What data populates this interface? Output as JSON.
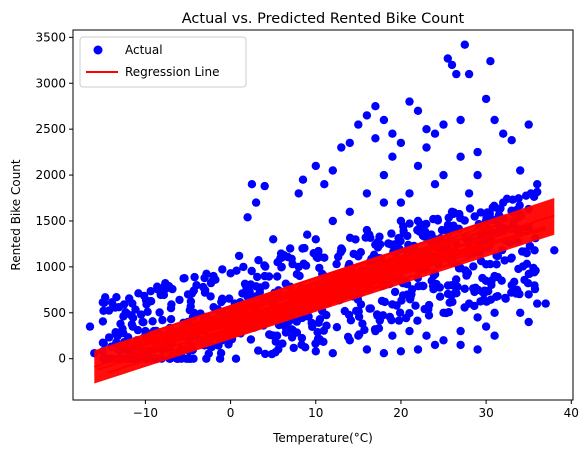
{
  "chart_data": {
    "type": "scatter",
    "title": "Actual vs. Predicted Rented Bike Count",
    "xlabel": "Temperature(°C)",
    "ylabel": "Rented Bike Count",
    "xlim": [
      -18.5,
      40.2
    ],
    "ylim": [
      -450,
      3580
    ],
    "xticks": [
      -10,
      0,
      10,
      20,
      30,
      40
    ],
    "yticks": [
      0,
      500,
      1000,
      1500,
      2000,
      2500,
      3000,
      3500
    ],
    "grid": false,
    "legend_position": "top-left",
    "legend": [
      {
        "label": "Actual",
        "marker": "circle",
        "color": "#0000ff"
      },
      {
        "label": "Regression Line",
        "marker": "line",
        "color": "#ff0000"
      }
    ],
    "series": [
      {
        "name": "Actual",
        "kind": "scatter",
        "color": "#0000ff",
        "points": [
          [
            -16.5,
            350
          ],
          [
            -16,
            60
          ],
          [
            -15,
            80
          ],
          [
            -14,
            130
          ],
          [
            -13,
            90
          ],
          [
            -12.5,
            590
          ],
          [
            -12,
            150
          ],
          [
            -11,
            200
          ],
          [
            -10.5,
            480
          ],
          [
            -10,
            260
          ],
          [
            -9,
            300
          ],
          [
            -8,
            420
          ],
          [
            -7,
            550
          ],
          [
            -6,
            640
          ],
          [
            -5,
            700
          ],
          [
            -4,
            800
          ],
          [
            -3,
            720
          ],
          [
            -2,
            900
          ],
          [
            -1,
            650
          ],
          [
            0,
            930
          ],
          [
            0.5,
            600
          ],
          [
            1,
            1120
          ],
          [
            1.5,
            1000
          ],
          [
            2,
            1540
          ],
          [
            2.5,
            1900
          ],
          [
            3,
            1700
          ],
          [
            4,
            1880
          ],
          [
            5,
            1300
          ],
          [
            6,
            1100
          ],
          [
            7,
            1200
          ],
          [
            8,
            1800
          ],
          [
            8.5,
            1950
          ],
          [
            9,
            1350
          ],
          [
            10,
            2100
          ],
          [
            11,
            1900
          ],
          [
            12,
            2050
          ],
          [
            13,
            2300
          ],
          [
            14,
            2350
          ],
          [
            15,
            2550
          ],
          [
            16,
            2650
          ],
          [
            17,
            2750
          ],
          [
            18,
            2600
          ],
          [
            19,
            2450
          ],
          [
            20,
            2350
          ],
          [
            21,
            2800
          ],
          [
            22,
            2700
          ],
          [
            23,
            2500
          ],
          [
            24,
            2450
          ],
          [
            25,
            2550
          ],
          [
            25.5,
            3270
          ],
          [
            26,
            3200
          ],
          [
            26.5,
            3100
          ],
          [
            27,
            2600
          ],
          [
            27.5,
            3420
          ],
          [
            28,
            3100
          ],
          [
            29,
            2250
          ],
          [
            30,
            2830
          ],
          [
            30.5,
            3240
          ],
          [
            31,
            2600
          ],
          [
            32,
            2450
          ],
          [
            33,
            2380
          ],
          [
            34,
            2050
          ],
          [
            35,
            2550
          ],
          [
            36,
            1900
          ],
          [
            37,
            600
          ],
          [
            38,
            1180
          ],
          [
            35,
            400
          ],
          [
            33,
            800
          ],
          [
            31,
            500
          ],
          [
            29,
            450
          ],
          [
            27,
            300
          ],
          [
            25,
            500
          ],
          [
            24,
            150
          ],
          [
            22,
            100
          ],
          [
            20,
            80
          ],
          [
            18,
            60
          ],
          [
            16,
            100
          ],
          [
            14,
            200
          ],
          [
            12,
            60
          ],
          [
            10,
            80
          ],
          [
            26,
            1600
          ],
          [
            28,
            1800
          ],
          [
            24,
            1900
          ],
          [
            22,
            2100
          ],
          [
            20,
            1500
          ],
          [
            18,
            1700
          ],
          [
            16,
            1400
          ],
          [
            14,
            1600
          ],
          [
            12,
            1500
          ],
          [
            10,
            1300
          ],
          [
            29,
            1200
          ],
          [
            31,
            900
          ],
          [
            33,
            1100
          ],
          [
            35,
            700
          ],
          [
            36,
            600
          ],
          [
            34,
            500
          ],
          [
            30,
            350
          ],
          [
            28,
            600
          ],
          [
            26,
            800
          ],
          [
            23,
            1000
          ],
          [
            21,
            1200
          ],
          [
            19,
            900
          ],
          [
            17,
            1100
          ],
          [
            15,
            800
          ],
          [
            13,
            700
          ],
          [
            11,
            900
          ],
          [
            9,
            700
          ],
          [
            7,
            500
          ],
          [
            5,
            600
          ],
          [
            3,
            400
          ],
          [
            1,
            300
          ],
          [
            -1,
            200
          ],
          [
            -3,
            300
          ],
          [
            -5,
            400
          ],
          [
            -7,
            200
          ],
          [
            -9,
            100
          ],
          [
            6,
            1000
          ],
          [
            4,
            900
          ],
          [
            2,
            800
          ],
          [
            27,
            2200
          ],
          [
            23,
            2300
          ],
          [
            19,
            2200
          ],
          [
            17,
            2400
          ],
          [
            21,
            1800
          ],
          [
            25,
            2000
          ],
          [
            29,
            2000
          ],
          [
            32,
            1700
          ],
          [
            30,
            1500
          ],
          [
            28,
            1300
          ],
          [
            26,
            1100
          ],
          [
            24,
            1300
          ],
          [
            22,
            1500
          ],
          [
            20,
            1700
          ],
          [
            18,
            2000
          ],
          [
            16,
            1800
          ],
          [
            13,
            1200
          ],
          [
            11,
            1100
          ],
          [
            8,
            1000
          ],
          [
            15,
            250
          ],
          [
            17,
            300
          ],
          [
            19,
            250
          ],
          [
            21,
            300
          ],
          [
            23,
            250
          ],
          [
            25,
            200
          ],
          [
            27,
            150
          ],
          [
            29,
            100
          ],
          [
            31,
            250
          ]
        ]
      },
      {
        "name": "Regression Line",
        "kind": "regression-band",
        "color": "#ff0000",
        "upper": [
          [
            -16,
            90
          ],
          [
            38,
            1750
          ]
        ],
        "center": [
          [
            -16,
            -90
          ],
          [
            38,
            1560
          ]
        ],
        "lower": [
          [
            -16,
            -270
          ],
          [
            38,
            1350
          ]
        ]
      }
    ]
  }
}
